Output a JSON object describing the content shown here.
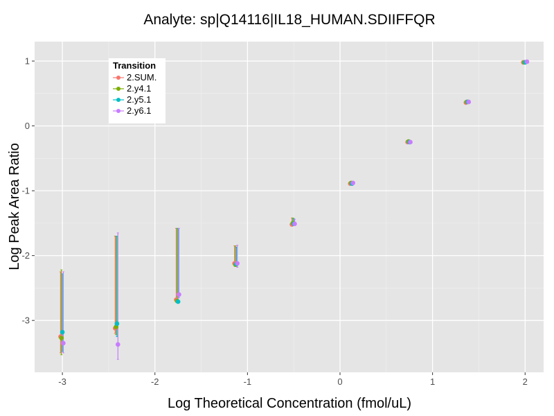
{
  "chart_data": {
    "type": "scatter",
    "title": "Analyte: sp|Q14116|IL18_HUMAN.SDIIFFQR",
    "xlabel": "Log Theoretical Concentration (fmol/uL)",
    "ylabel": "Log Peak Area Ratio",
    "xlim": [
      -3.3,
      2.2
    ],
    "ylim": [
      -3.8,
      1.3
    ],
    "x_ticks": [
      -3,
      -2,
      -1,
      0,
      1,
      2
    ],
    "y_ticks": [
      -3,
      -2,
      -1,
      0,
      1
    ],
    "x_tick_labels": [
      "-3",
      "-2",
      "-1",
      "0",
      "1",
      "2"
    ],
    "y_tick_labels": [
      "-3",
      "-2",
      "-1",
      "0",
      "1"
    ],
    "grid": true,
    "background": "#e5e5e5",
    "legend": {
      "title": "Transition",
      "position": "top-left"
    },
    "series": [
      {
        "name": "2.SUM.",
        "color": "#f8766d",
        "points": [
          {
            "x": -3.02,
            "y": -3.25,
            "ymin": -3.5,
            "ymax": -2.25
          },
          {
            "x": -2.43,
            "y": -3.12,
            "ymin": -3.2,
            "ymax": -1.7
          },
          {
            "x": -1.77,
            "y": -2.68,
            "ymin": -2.7,
            "ymax": -1.58
          },
          {
            "x": -1.14,
            "y": -2.12,
            "ymin": -2.15,
            "ymax": -1.85
          },
          {
            "x": -0.52,
            "y": -1.52,
            "ymin": -1.53,
            "ymax": -1.42
          },
          {
            "x": 0.11,
            "y": -0.89,
            "ymin": -0.9,
            "ymax": -0.88
          },
          {
            "x": 0.73,
            "y": -0.25,
            "ymin": -0.26,
            "ymax": -0.24
          },
          {
            "x": 1.36,
            "y": 0.36,
            "ymin": 0.35,
            "ymax": 0.37
          },
          {
            "x": 1.98,
            "y": 0.98,
            "ymin": 0.97,
            "ymax": 0.99
          }
        ]
      },
      {
        "name": "2.y4.1",
        "color": "#7cae00",
        "points": [
          {
            "x": -3.01,
            "y": -3.27,
            "ymin": -3.53,
            "ymax": -2.22
          },
          {
            "x": -2.42,
            "y": -3.1,
            "ymin": -3.22,
            "ymax": -1.7
          },
          {
            "x": -1.76,
            "y": -2.7,
            "ymin": -2.72,
            "ymax": -1.58
          },
          {
            "x": -1.13,
            "y": -2.14,
            "ymin": -2.16,
            "ymax": -1.85
          },
          {
            "x": -0.51,
            "y": -1.5,
            "ymin": -1.52,
            "ymax": -1.42
          },
          {
            "x": 0.12,
            "y": -0.88,
            "ymin": -0.89,
            "ymax": -0.87
          },
          {
            "x": 0.74,
            "y": -0.24,
            "ymin": -0.25,
            "ymax": -0.23
          },
          {
            "x": 1.37,
            "y": 0.37,
            "ymin": 0.36,
            "ymax": 0.38
          },
          {
            "x": 1.99,
            "y": 0.98,
            "ymin": 0.97,
            "ymax": 0.99
          }
        ]
      },
      {
        "name": "2.y5.1",
        "color": "#00bfc4",
        "points": [
          {
            "x": -3.0,
            "y": -3.18,
            "ymin": -3.48,
            "ymax": -2.28
          },
          {
            "x": -2.41,
            "y": -3.05,
            "ymin": -3.25,
            "ymax": -1.7
          },
          {
            "x": -1.75,
            "y": -2.71,
            "ymin": -2.73,
            "ymax": -1.58
          },
          {
            "x": -1.12,
            "y": -2.13,
            "ymin": -2.16,
            "ymax": -1.87
          },
          {
            "x": -0.5,
            "y": -1.51,
            "ymin": -1.53,
            "ymax": -1.43
          },
          {
            "x": 0.13,
            "y": -0.89,
            "ymin": -0.9,
            "ymax": -0.88
          },
          {
            "x": 0.75,
            "y": -0.25,
            "ymin": -0.26,
            "ymax": -0.24
          },
          {
            "x": 1.38,
            "y": 0.37,
            "ymin": 0.36,
            "ymax": 0.38
          },
          {
            "x": 2.0,
            "y": 0.98,
            "ymin": 0.97,
            "ymax": 0.99
          }
        ]
      },
      {
        "name": "2.y6.1",
        "color": "#c77cff",
        "points": [
          {
            "x": -2.99,
            "y": -3.35,
            "ymin": -3.5,
            "ymax": -2.25
          },
          {
            "x": -2.4,
            "y": -3.37,
            "ymin": -3.6,
            "ymax": -1.65
          },
          {
            "x": -1.74,
            "y": -2.6,
            "ymin": -2.65,
            "ymax": -1.58
          },
          {
            "x": -1.11,
            "y": -2.12,
            "ymin": -2.18,
            "ymax": -1.84
          },
          {
            "x": -0.49,
            "y": -1.51,
            "ymin": -1.53,
            "ymax": -1.44
          },
          {
            "x": 0.14,
            "y": -0.88,
            "ymin": -0.89,
            "ymax": -0.87
          },
          {
            "x": 0.76,
            "y": -0.25,
            "ymin": -0.26,
            "ymax": -0.24
          },
          {
            "x": 1.39,
            "y": 0.37,
            "ymin": 0.36,
            "ymax": 0.38
          },
          {
            "x": 2.02,
            "y": 0.99,
            "ymin": 0.98,
            "ymax": 1.0
          }
        ]
      }
    ]
  }
}
